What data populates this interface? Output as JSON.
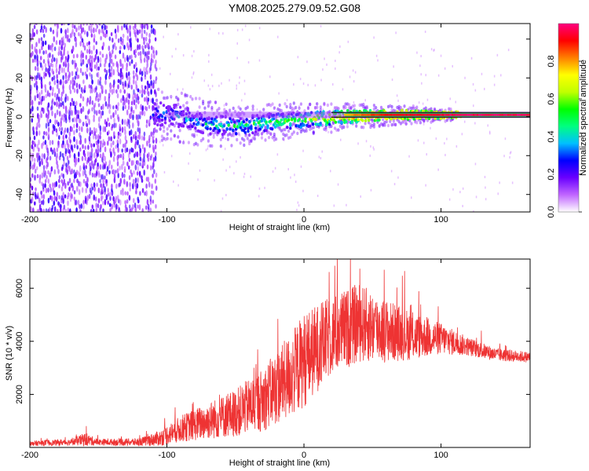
{
  "title": "YM08.2025.279.09.52.G08",
  "chart_data": [
    {
      "id": "spectrogram",
      "type": "heatmap",
      "title": "YM08.2025.279.09.52.G08",
      "xlabel": "Height of straight line (km)",
      "ylabel": "Frequency (Hz)",
      "xlim": [
        -200,
        165
      ],
      "ylim": [
        -49,
        48
      ],
      "x_ticks": [
        -200,
        -100,
        0,
        100
      ],
      "x_tick_labels": [
        "-200",
        "-100",
        "0",
        "100"
      ],
      "y_ticks": [
        -40,
        -20,
        0,
        20,
        40
      ],
      "y_tick_labels": [
        "-40",
        "-20",
        "0",
        "20",
        "40"
      ],
      "colorbar": {
        "label": "Normalized spectral amplitude",
        "range": [
          0,
          1
        ],
        "ticks": [
          0.0,
          0.2,
          0.4,
          0.6,
          0.8
        ],
        "tick_labels": [
          "0.0",
          "0.2",
          "0.4",
          "0.6",
          "0.8"
        ],
        "colors": [
          "#ffffff",
          "#c066ff",
          "#6a00ff",
          "#0000ff",
          "#00c0ff",
          "#00ff80",
          "#00ff00",
          "#c0ff00",
          "#ffff00",
          "#ff8000",
          "#ff0000",
          "#ff0080"
        ]
      },
      "ridge": {
        "x": [
          -110,
          -90,
          -70,
          -50,
          -30,
          -10,
          10,
          30,
          50,
          70,
          90,
          110,
          165
        ],
        "freq": [
          2,
          0,
          -4,
          -5,
          -3,
          -2,
          -1,
          0,
          0.5,
          1,
          1,
          1,
          1
        ],
        "amplitude": [
          0.3,
          0.35,
          0.4,
          0.45,
          0.5,
          0.55,
          0.65,
          0.75,
          0.85,
          0.9,
          0.9,
          0.95,
          0.95
        ]
      }
    },
    {
      "id": "snr",
      "type": "line",
      "xlabel": "Height of straight line (km)",
      "ylabel": "SNR (10 * v/v)",
      "xlim": [
        -200,
        165
      ],
      "ylim": [
        0,
        7100
      ],
      "x_ticks": [
        -200,
        -100,
        0,
        100
      ],
      "x_tick_labels": [
        "-200",
        "-100",
        "0",
        "100"
      ],
      "y_ticks": [
        2000,
        4000,
        6000
      ],
      "y_tick_labels": [
        "2000",
        "4000",
        "6000"
      ],
      "series": [
        {
          "name": "SNR",
          "color": "#ee3333",
          "envelope_x": [
            -200,
            -170,
            -160,
            -150,
            -120,
            -105,
            -90,
            -70,
            -50,
            -30,
            -10,
            0,
            20,
            40,
            60,
            80,
            100,
            120,
            140,
            165
          ],
          "envelope_mean": [
            150,
            200,
            300,
            200,
            200,
            350,
            700,
            1000,
            1300,
            1800,
            2700,
            3300,
            4200,
            4700,
            4400,
            4200,
            4100,
            3800,
            3500,
            3400
          ],
          "envelope_amp": [
            100,
            120,
            250,
            120,
            150,
            300,
            500,
            700,
            900,
            1200,
            1600,
            1800,
            1500,
            1500,
            1200,
            900,
            600,
            350,
            250,
            200
          ]
        }
      ]
    }
  ]
}
